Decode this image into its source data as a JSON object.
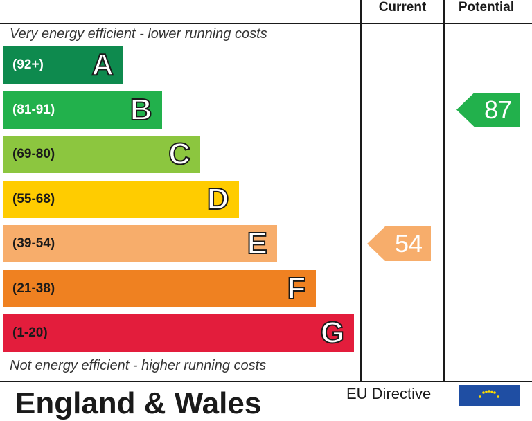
{
  "chart_data": {
    "type": "bar",
    "columns": [
      "Current",
      "Potential"
    ],
    "top_caption": "Very energy efficient - lower running costs",
    "bottom_caption": "Not energy efficient - higher running costs",
    "bands": [
      {
        "letter": "A",
        "range": "(92+)",
        "color": "#0e8a4e",
        "light_text": true
      },
      {
        "letter": "B",
        "range": "(81-91)",
        "color": "#22b14c",
        "light_text": true
      },
      {
        "letter": "C",
        "range": "(69-80)",
        "color": "#8cc63f",
        "light_text": false
      },
      {
        "letter": "D",
        "range": "(55-68)",
        "color": "#ffcc00",
        "light_text": false
      },
      {
        "letter": "E",
        "range": "(39-54)",
        "color": "#f7ad6b",
        "light_text": false
      },
      {
        "letter": "F",
        "range": "(21-38)",
        "color": "#ef8121",
        "light_text": false
      },
      {
        "letter": "G",
        "range": "(1-20)",
        "color": "#e31d3c",
        "light_text": false
      }
    ],
    "current": {
      "value": 54,
      "band": "E",
      "color": "#f7ad6b"
    },
    "potential": {
      "value": 87,
      "band": "B",
      "color": "#22b14c"
    }
  },
  "footer": {
    "title": "England & Wales",
    "eu_label": "EU Directive"
  }
}
